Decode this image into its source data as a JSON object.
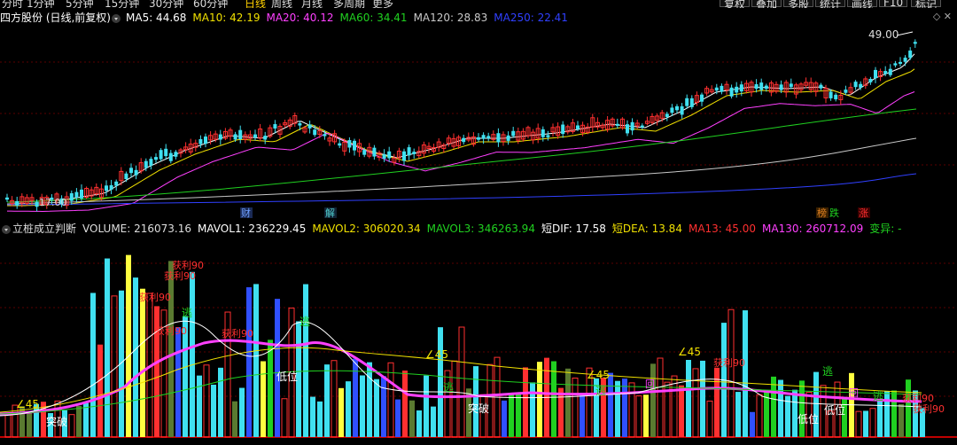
{
  "nav_left": [
    "分时",
    "1分钟",
    "5分钟",
    "15分钟",
    "30分钟",
    "60分钟",
    "日线",
    "周线",
    "月线",
    "多周期",
    "更多"
  ],
  "nav_right": [
    "复权",
    "叠加",
    "多股",
    "统计",
    "画线",
    "F10",
    "标记"
  ],
  "nav_active": "日线",
  "price_panel": {
    "stock": "四方股份 (日线,前复权)",
    "ma": [
      {
        "label": "MA5: 44.68",
        "color": "#ffffff"
      },
      {
        "label": "MA10: 42.19",
        "color": "#f0e000"
      },
      {
        "label": "MA20: 40.12",
        "color": "#ff40ff"
      },
      {
        "label": "MA60: 34.41",
        "color": "#20d020"
      },
      {
        "label": "MA120: 28.83",
        "color": "#c8c8c8"
      },
      {
        "label": "MA250: 22.41",
        "color": "#3040ff"
      }
    ],
    "high_label": "49.00",
    "low_label": "17.00",
    "event_tags": [
      {
        "text": "财",
        "color": "#6fa0ff"
      },
      {
        "text": "解",
        "color": "#50d0d0"
      },
      {
        "text": "榜",
        "color": "#e08020"
      },
      {
        "text": "跌",
        "color": "#20d020"
      },
      {
        "text": "涨",
        "color": "#ff3030"
      }
    ]
  },
  "volume_panel": {
    "indicator": "立桩成立判断",
    "items": [
      {
        "label": "VOLUME: 216073.16",
        "color": "#dddddd"
      },
      {
        "label": "MAVOL1: 236229.45",
        "color": "#ffffff"
      },
      {
        "label": "MAVOL2: 306020.34",
        "color": "#f0e000"
      },
      {
        "label": "MAVOL3: 346263.94",
        "color": "#20d020"
      },
      {
        "label": "短DIF: 17.58",
        "color": "#ffffff"
      },
      {
        "label": "短DEA: 13.84",
        "color": "#f0e000"
      },
      {
        "label": "MA13: 45.00",
        "color": "#ff3030"
      },
      {
        "label": "MA130: 260712.09",
        "color": "#ff40ff"
      },
      {
        "label": "变异: -",
        "color": "#20d020"
      }
    ],
    "signals": [
      {
        "text": "获利90",
        "color": "#ff3030"
      },
      {
        "text": "逃",
        "color": "#20d020"
      },
      {
        "text": "突破",
        "color": "#ffffff"
      },
      {
        "text": "低位",
        "color": "#ffffff"
      },
      {
        "text": "∠45",
        "color": "#f0e000"
      },
      {
        "text": "回",
        "color": "#ff40ff"
      }
    ]
  },
  "colors": {
    "up": "#ff3030",
    "down": "#40e0f0",
    "bg": "#000000",
    "grid": "#5a0000"
  }
}
